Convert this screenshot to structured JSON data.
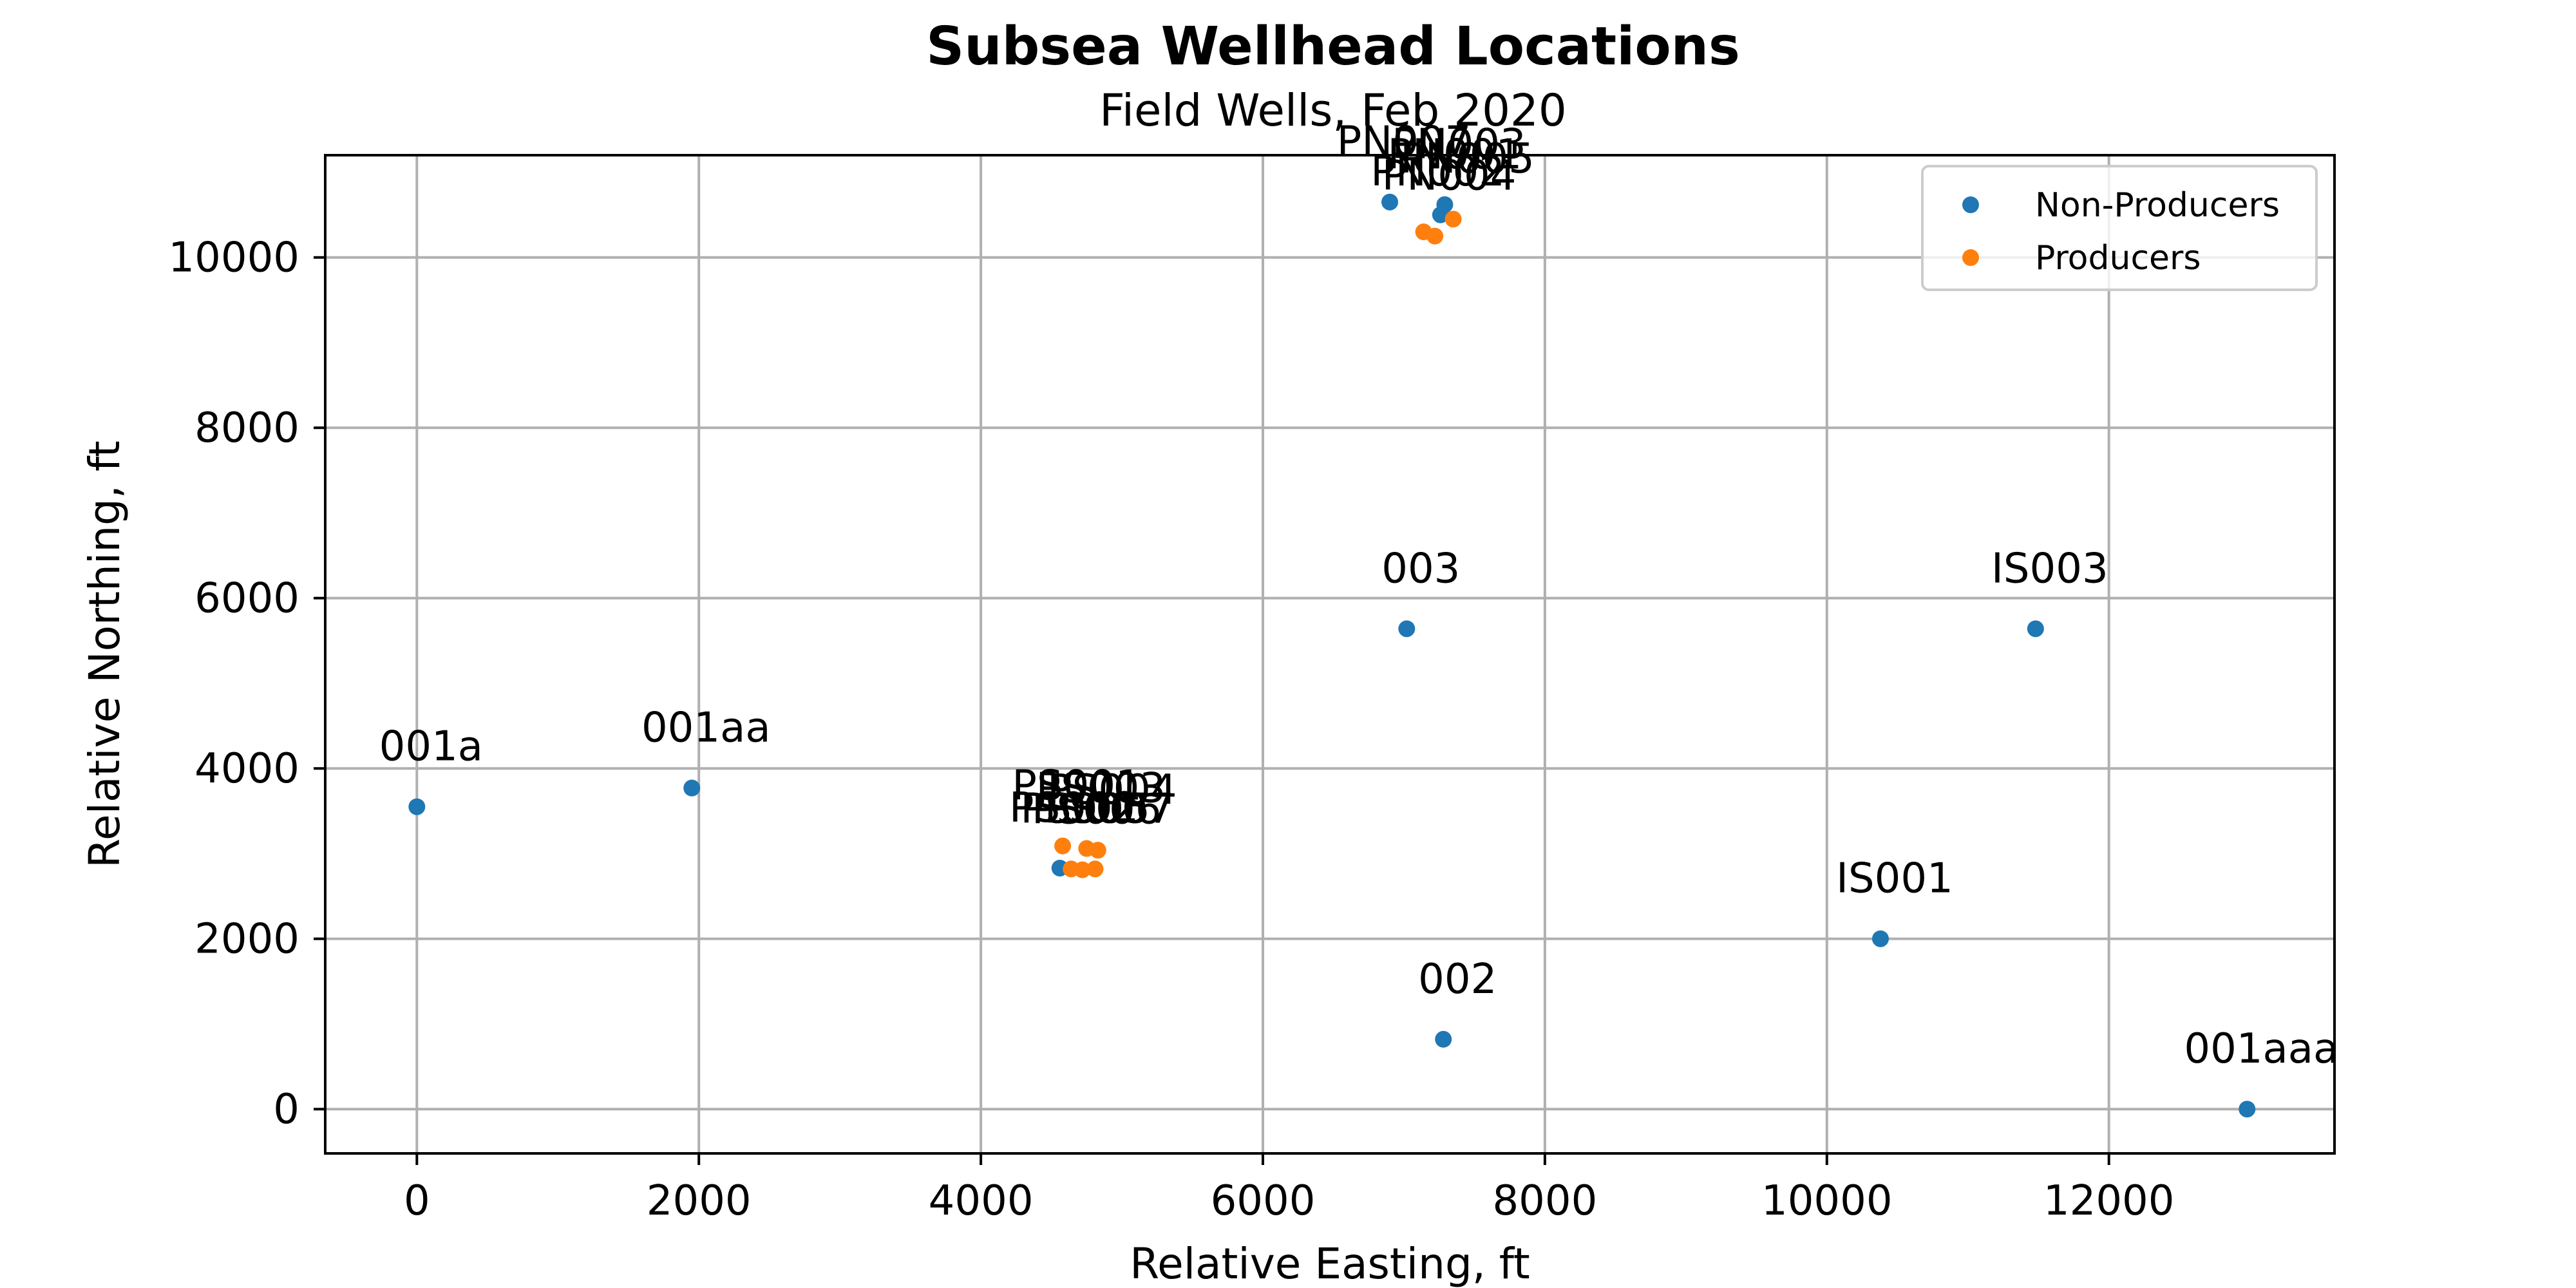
{
  "chart_data": {
    "type": "scatter",
    "title": "Subsea Wellhead Locations",
    "subtitle": "Field Wells, Feb 2020",
    "xlabel": "Relative Easting, ft",
    "ylabel": "Relative Northing, ft",
    "xlim": [
      -650,
      13600
    ],
    "ylim": [
      -520,
      11200
    ],
    "xticks": [
      0,
      2000,
      4000,
      6000,
      8000,
      10000,
      12000
    ],
    "yticks": [
      0,
      2000,
      4000,
      6000,
      8000,
      10000
    ],
    "grid": true,
    "legend_position": "top-right",
    "series": [
      {
        "name": "Non-Producers",
        "color": "#1f77b4",
        "points": [
          {
            "label": "001a",
            "x": 0,
            "y": 3550
          },
          {
            "label": "001aa",
            "x": 1950,
            "y": 3770
          },
          {
            "label": "003",
            "x": 7020,
            "y": 5640
          },
          {
            "label": "IS003",
            "x": 11480,
            "y": 5640
          },
          {
            "label": "IS001",
            "x": 10380,
            "y": 2000
          },
          {
            "label": "002",
            "x": 7280,
            "y": 820
          },
          {
            "label": "001aaa",
            "x": 12980,
            "y": 0
          },
          {
            "label": "PS002",
            "x": 4560,
            "y": 2830
          },
          {
            "label": "PN007",
            "x": 6900,
            "y": 10650
          },
          {
            "label": "PN003",
            "x": 7290,
            "y": 10620
          },
          {
            "label": "PN001",
            "x": 7260,
            "y": 10500
          }
        ]
      },
      {
        "name": "Producers",
        "color": "#ff7f0e",
        "points": [
          {
            "label": "PS001",
            "x": 4580,
            "y": 3090
          },
          {
            "label": "PS003",
            "x": 4750,
            "y": 3060
          },
          {
            "label": "PS004",
            "x": 4830,
            "y": 3040
          },
          {
            "label": "PS005",
            "x": 4640,
            "y": 2820
          },
          {
            "label": "PS006",
            "x": 4720,
            "y": 2810
          },
          {
            "label": "PS007",
            "x": 4810,
            "y": 2820
          },
          {
            "label": "PN002",
            "x": 7140,
            "y": 10300
          },
          {
            "label": "PN004",
            "x": 7220,
            "y": 10250
          },
          {
            "label": "PN005",
            "x": 7350,
            "y": 10450
          }
        ]
      }
    ]
  }
}
